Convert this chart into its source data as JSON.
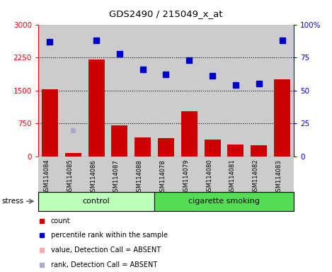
{
  "title": "GDS2490 / 215049_x_at",
  "samples": [
    "GSM114084",
    "GSM114085",
    "GSM114086",
    "GSM114087",
    "GSM114088",
    "GSM114078",
    "GSM114079",
    "GSM114080",
    "GSM114081",
    "GSM114082",
    "GSM114083"
  ],
  "bar_values": [
    1530,
    75,
    2210,
    700,
    430,
    420,
    1020,
    390,
    270,
    260,
    1750
  ],
  "rank_values": [
    87,
    null,
    88,
    78,
    66,
    62,
    73,
    61,
    54,
    55,
    88
  ],
  "rank_absent": [
    null,
    20,
    null,
    null,
    null,
    null,
    null,
    null,
    null,
    null,
    null
  ],
  "bar_color": "#cc0000",
  "bar_absent_color": "#ffaaaa",
  "rank_color": "#0000cc",
  "rank_absent_color": "#aaaacc",
  "ylim_left": [
    0,
    3000
  ],
  "ylim_right": [
    0,
    100
  ],
  "yticks_left": [
    0,
    750,
    1500,
    2250,
    3000
  ],
  "yticks_right": [
    0,
    25,
    50,
    75,
    100
  ],
  "yticklabels_right": [
    "0",
    "25",
    "50",
    "75",
    "100%"
  ],
  "grid_values": [
    750,
    1500,
    2250
  ],
  "control_indices": [
    0,
    1,
    2,
    3,
    4
  ],
  "smoking_indices": [
    5,
    6,
    7,
    8,
    9,
    10
  ],
  "control_label": "control",
  "smoking_label": "cigarette smoking",
  "stress_label": "stress",
  "group_color_control": "#bbffbb",
  "group_color_smoking": "#55dd55",
  "tick_area_color": "#cccccc",
  "plot_bg_color": "#ffffff",
  "legend_labels": [
    "count",
    "percentile rank within the sample",
    "value, Detection Call = ABSENT",
    "rank, Detection Call = ABSENT"
  ],
  "legend_colors": [
    "#cc0000",
    "#0000cc",
    "#ffaaaa",
    "#aaaacc"
  ]
}
